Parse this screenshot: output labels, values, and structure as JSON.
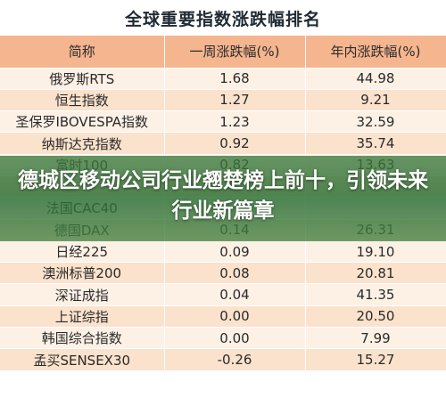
{
  "title": "全球重要指数涨跌幅排名",
  "headers": [
    "简称",
    "一周涨跌幅(%)",
    "年内涨跌幅(%)"
  ],
  "rows": [
    [
      "俄罗斯RTS",
      "1.68",
      "44.98"
    ],
    [
      "恒生指数",
      "1.27",
      "9.21"
    ],
    [
      "圣保罗IBOVESPA指数",
      "1.23",
      "32.59"
    ],
    [
      "纳斯达克指数",
      "0.92",
      "35.74"
    ],
    [
      "富时100",
      "0.82",
      "13.63"
    ],
    [
      "",
      "",
      ""
    ],
    [
      "法国CAC40",
      "",
      ""
    ],
    [
      "德国DAX",
      "0.14",
      "26.31"
    ],
    [
      "日经225",
      "0.09",
      "19.10"
    ],
    [
      "澳洲标普200",
      "0.08",
      "20.81"
    ],
    [
      "深证成指",
      "0.04",
      "41.35"
    ],
    [
      "上证综指",
      "0.00",
      "20.50"
    ],
    [
      "韩国综合指数",
      "0.00",
      "7.99"
    ],
    [
      "孟买SENSEX30",
      "-0.26",
      "15.27"
    ]
  ],
  "headline": "德城区移动公司行业翘楚榜上前十，引领未来行业新篇章",
  "colors": {
    "header_bg": "#f5b58f",
    "row_light": "#fdf1e6",
    "row_dark": "#fbe2cc",
    "overlay": "#3c783c"
  }
}
